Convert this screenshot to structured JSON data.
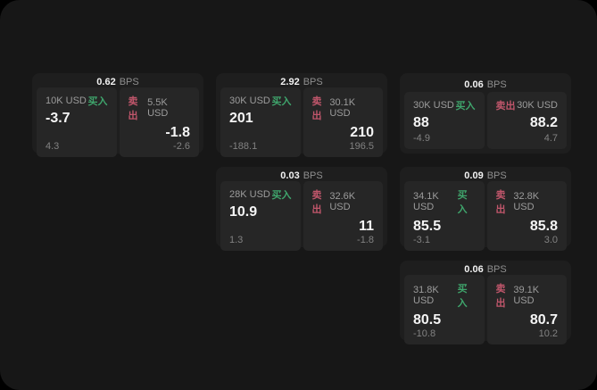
{
  "labels": {
    "bps": "BPS",
    "buy": "买入",
    "sell": "卖出"
  },
  "theme": {
    "background": "#000000",
    "window": "#171717",
    "card": "#1e1e1e",
    "tile": "#262626",
    "buy_color": "#3fa56c",
    "sell_color": "#c0566b",
    "text_primary": "#f5f5f5",
    "text_muted": "#9c9c9c"
  },
  "cards": [
    {
      "bps": "0.62",
      "col": 1,
      "row": 1,
      "buy": {
        "amount": "10K USD",
        "value": "-3.7",
        "sub": "4.3"
      },
      "sell": {
        "amount": "5.5K USD",
        "value": "-1.8",
        "sub": "-2.6"
      }
    },
    {
      "bps": "2.92",
      "col": 2,
      "row": 1,
      "buy": {
        "amount": "30K USD",
        "value": "201",
        "sub": "-188.1"
      },
      "sell": {
        "amount": "30.1K USD",
        "value": "210",
        "sub": "196.5"
      }
    },
    {
      "bps": "0.06",
      "col": 3,
      "row": 1,
      "buy": {
        "amount": "30K USD",
        "value": "88",
        "sub": "-4.9"
      },
      "sell": {
        "amount": "30K USD",
        "value": "88.2",
        "sub": "4.7"
      }
    },
    {
      "bps": "0.03",
      "col": 2,
      "row": 2,
      "buy": {
        "amount": "28K USD",
        "value": "10.9",
        "sub": "1.3"
      },
      "sell": {
        "amount": "32.6K USD",
        "value": "11",
        "sub": "-1.8"
      }
    },
    {
      "bps": "0.09",
      "col": 3,
      "row": 2,
      "buy": {
        "amount": "34.1K USD",
        "value": "85.5",
        "sub": "-3.1"
      },
      "sell": {
        "amount": "32.8K USD",
        "value": "85.8",
        "sub": "3.0"
      }
    },
    {
      "bps": "0.06",
      "col": 3,
      "row": 3,
      "buy": {
        "amount": "31.8K USD",
        "value": "80.5",
        "sub": "-10.8"
      },
      "sell": {
        "amount": "39.1K USD",
        "value": "80.7",
        "sub": "10.2"
      }
    }
  ]
}
